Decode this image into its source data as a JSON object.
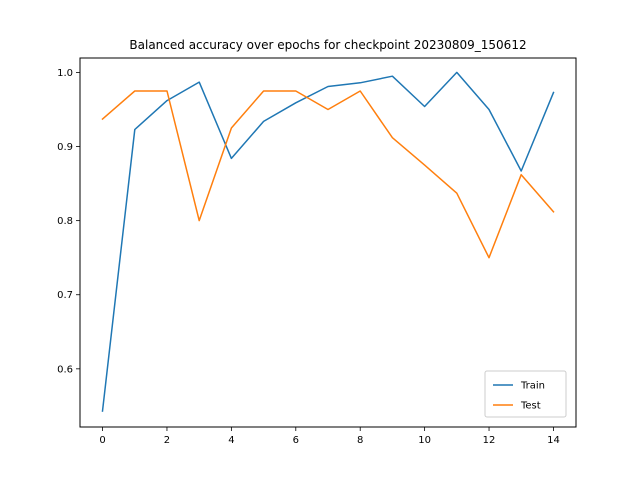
{
  "chart_data": {
    "type": "line",
    "title": "Balanced accuracy over epochs for checkpoint 20230809_150612",
    "xlabel": "",
    "ylabel": "",
    "x": [
      0,
      1,
      2,
      3,
      4,
      5,
      6,
      7,
      8,
      9,
      10,
      11,
      12,
      13,
      14
    ],
    "xlim": [
      -0.7,
      14.7
    ],
    "ylim": [
      0.5215,
      1.0195
    ],
    "xticks": [
      0,
      2,
      4,
      6,
      8,
      10,
      12,
      14
    ],
    "yticks": [
      0.6,
      0.7,
      0.8,
      0.9,
      1.0
    ],
    "xtick_labels": [
      "0",
      "2",
      "4",
      "6",
      "8",
      "10",
      "12",
      "14"
    ],
    "ytick_labels": [
      "0.6",
      "0.7",
      "0.8",
      "0.9",
      "1.0"
    ],
    "grid": false,
    "legend_position": "lower-right",
    "series": [
      {
        "name": "Train",
        "color": "#1f77b4",
        "values": [
          0.543,
          0.923,
          0.962,
          0.987,
          0.884,
          0.934,
          0.959,
          0.981,
          0.986,
          0.995,
          0.954,
          1.0,
          0.95,
          0.867,
          0.973
        ]
      },
      {
        "name": "Test",
        "color": "#ff7f0e",
        "values": [
          0.937,
          0.975,
          0.975,
          0.8,
          0.925,
          0.975,
          0.975,
          0.95,
          0.975,
          0.912,
          0.875,
          0.837,
          0.75,
          0.862,
          0.812
        ]
      }
    ]
  }
}
